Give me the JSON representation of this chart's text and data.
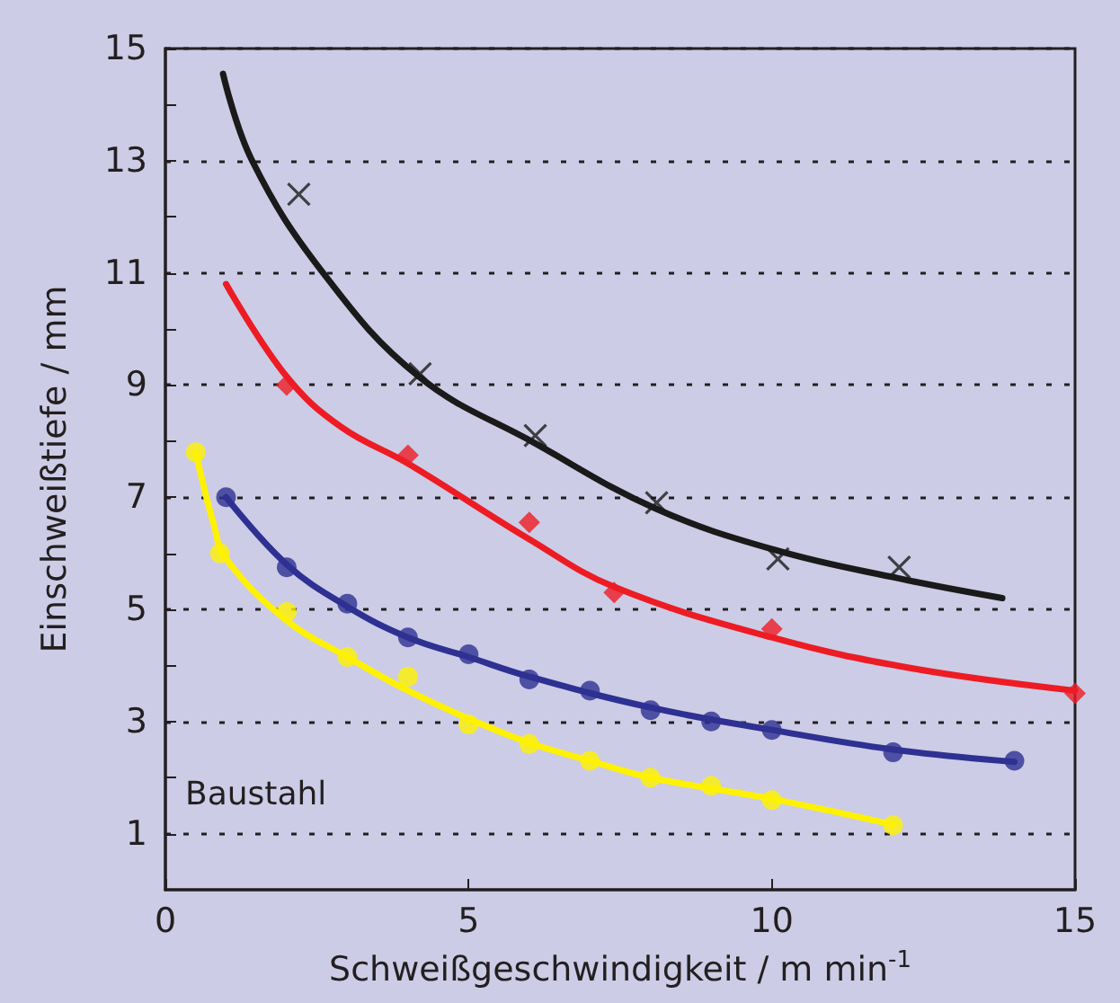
{
  "chart_data": {
    "type": "scatter",
    "xlabel": "Schweißgeschwindigkeit / m min$^{-1}$",
    "ylabel": "Einschweißtiefe / mm",
    "annotations": [
      "Baustahl"
    ],
    "xlim": [
      0,
      15
    ],
    "xticks": [
      0,
      5,
      10,
      15
    ],
    "ylim": [
      0,
      15
    ],
    "yticks": [
      1,
      {
        "value": 2,
        "label": null
      },
      3,
      {
        "value": 4,
        "label": null
      },
      5,
      {
        "value": 6,
        "label": null
      },
      7,
      {
        "value": 8,
        "label": null
      },
      9,
      {
        "value": 10,
        "label": null
      },
      11,
      {
        "value": 12,
        "label": null
      },
      13,
      {
        "value": 14,
        "label": null
      },
      15
    ],
    "grid": "y",
    "line_style": "solid",
    "series": [
      {
        "type": "line",
        "color": "#1a1a1a",
        "marker": "none",
        "x": [
          0.95,
          1.43,
          2.6,
          4.18,
          6.08,
          8.08,
          10.08,
          12.1,
          13.8
        ],
        "values": [
          14.55,
          13.0,
          11.0,
          9.15,
          7.97,
          6.8,
          6.05,
          5.55,
          5.2
        ]
      },
      {
        "color": "#1a1a1a",
        "marker": "cross",
        "x": [
          2.2,
          4.2,
          6.1,
          8.1,
          10.1,
          12.1
        ],
        "values": [
          12.4,
          9.2,
          8.1,
          6.9,
          5.9,
          5.75
        ]
      },
      {
        "type": "line",
        "color": "#ed1c24",
        "marker": "none",
        "x": [
          1.0,
          2.0,
          2.9,
          4.0,
          6.0,
          7.4,
          10.0,
          12.3,
          15.0
        ],
        "values": [
          10.8,
          9.15,
          8.25,
          7.6,
          6.25,
          5.4,
          4.5,
          3.95,
          3.55
        ]
      },
      {
        "color": "#ed1c24",
        "marker": "diamond",
        "x": [
          2,
          4,
          6,
          7.4,
          10,
          15
        ],
        "values": [
          9.0,
          7.75,
          6.55,
          5.3,
          4.65,
          3.5
        ]
      },
      {
        "type": "line",
        "color": "#2e3192",
        "marker": "none",
        "x": [
          1,
          2,
          3,
          4,
          5,
          6,
          8,
          10,
          12,
          14
        ],
        "values": [
          7.0,
          5.8,
          5.05,
          4.5,
          4.15,
          3.8,
          3.25,
          2.85,
          2.5,
          2.28
        ]
      },
      {
        "color": "#2e3192",
        "marker": "circle",
        "x": [
          1,
          2,
          3,
          4,
          5,
          6,
          7,
          8,
          9,
          10,
          12,
          14
        ],
        "values": [
          7.0,
          5.75,
          5.1,
          4.5,
          4.2,
          3.75,
          3.55,
          3.2,
          3.0,
          2.85,
          2.45,
          2.3
        ]
      },
      {
        "type": "line",
        "color": "#fff200",
        "marker": "none",
        "x": [
          0.5,
          0.8,
          1,
          2,
          3,
          4,
          5,
          6,
          7,
          8,
          10,
          12
        ],
        "values": [
          7.8,
          6.5,
          5.9,
          4.8,
          4.15,
          3.55,
          3.05,
          2.62,
          2.3,
          2.0,
          1.62,
          1.16
        ]
      },
      {
        "color": "#fff200",
        "marker": "circle",
        "x": [
          0.5,
          0.9,
          2,
          3,
          4,
          5,
          6,
          7,
          8,
          9,
          10,
          12
        ],
        "values": [
          7.8,
          6.0,
          4.95,
          4.15,
          3.8,
          2.95,
          2.6,
          2.3,
          2.0,
          1.85,
          1.6,
          1.15
        ]
      }
    ]
  }
}
